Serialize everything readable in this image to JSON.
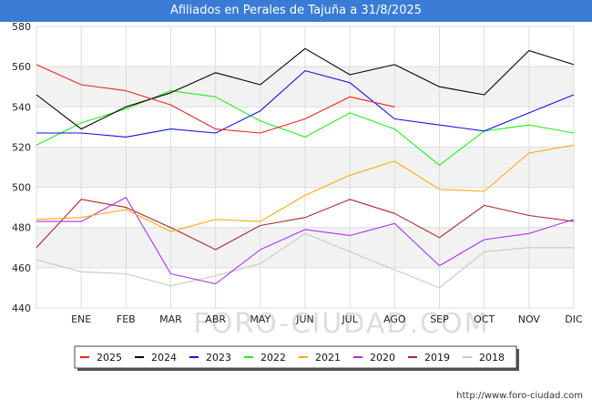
{
  "chart_data": {
    "type": "line",
    "title": "Afiliados en Perales de Tajuña a 31/8/2025",
    "x_categories": [
      "",
      "ENE",
      "FEB",
      "MAR",
      "ABR",
      "MAY",
      "JUN",
      "JUL",
      "AGO",
      "SEP",
      "OCT",
      "NOV",
      "DIC"
    ],
    "y_ticks": [
      "440",
      "460",
      "480",
      "500",
      "520",
      "540",
      "560",
      "580"
    ],
    "ylim": [
      440,
      580
    ],
    "grid": true,
    "legend_position": "bottom",
    "series": [
      {
        "name": "2025",
        "color": "#ee2222",
        "values": [
          561,
          551,
          548,
          541,
          529,
          527,
          534,
          545,
          540
        ]
      },
      {
        "name": "2024",
        "color": "#000000",
        "values": [
          546,
          529,
          540,
          547,
          557,
          551,
          569,
          556,
          561,
          550,
          546,
          568,
          561
        ]
      },
      {
        "name": "2023",
        "color": "#1111ee",
        "values": [
          527,
          527,
          525,
          529,
          527,
          538,
          558,
          552,
          534,
          531,
          528,
          537,
          546
        ]
      },
      {
        "name": "2022",
        "color": "#22ee22",
        "values": [
          521,
          532,
          539,
          548,
          545,
          533,
          525,
          537,
          529,
          511,
          528,
          531,
          527
        ]
      },
      {
        "name": "2021",
        "color": "#ffaa11",
        "values": [
          484,
          485,
          489,
          478,
          484,
          483,
          496,
          506,
          513,
          499,
          498,
          517,
          521
        ]
      },
      {
        "name": "2020",
        "color": "#aa33ee",
        "values": [
          483,
          483,
          495,
          457,
          452,
          469,
          479,
          476,
          482,
          461,
          474,
          477,
          484
        ]
      },
      {
        "name": "2019",
        "color": "#a52a2a",
        "values": [
          470,
          494,
          490,
          480,
          469,
          481,
          485,
          494,
          487,
          475,
          491,
          486,
          483
        ]
      },
      {
        "name": "2018",
        "color": "#c8c8c8",
        "values": [
          464,
          458,
          457,
          451,
          456,
          462,
          477,
          468,
          459,
          450,
          468,
          470,
          470
        ]
      }
    ],
    "source": "http://www.foro-ciudad.com",
    "watermark": "FORO-CIUDAD.COM"
  }
}
